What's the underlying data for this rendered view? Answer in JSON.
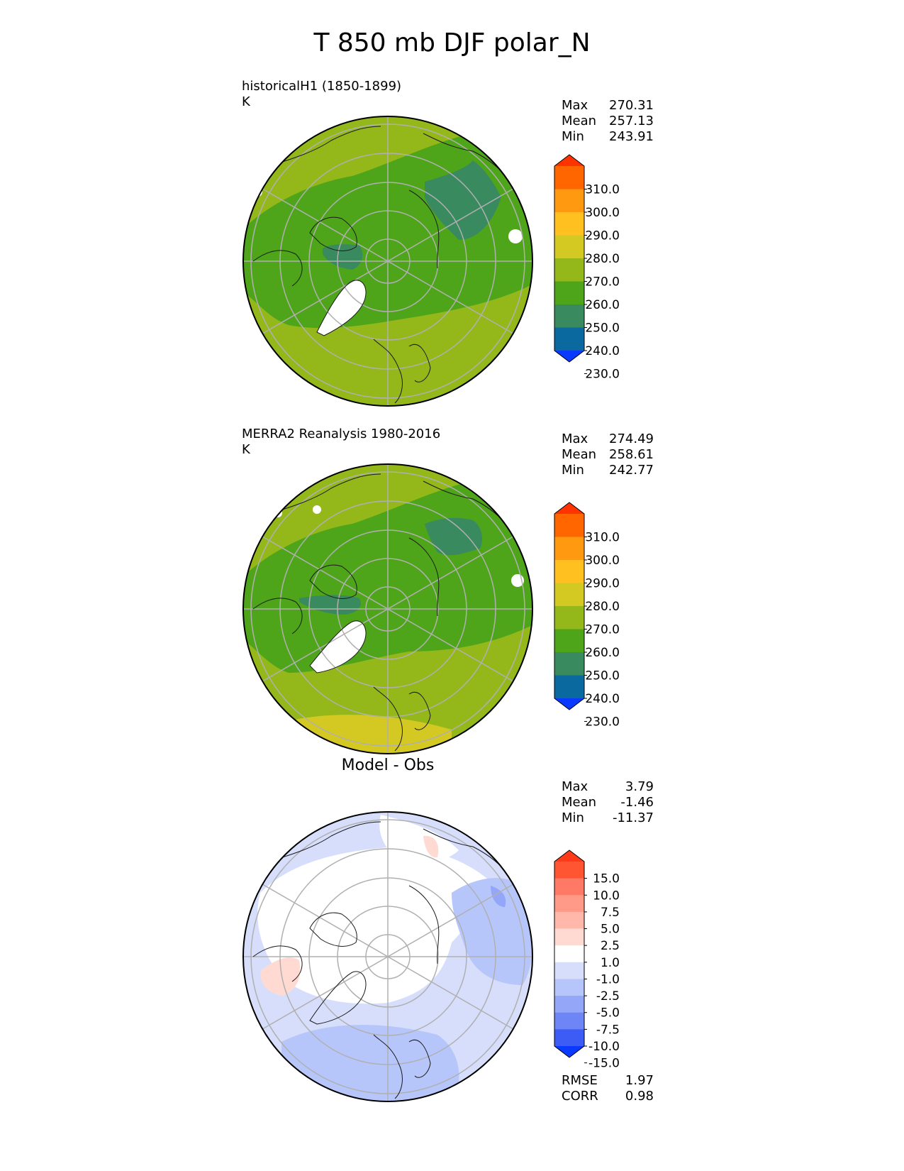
{
  "figure_title": "T 850 mb DJF polar_N",
  "panels": [
    {
      "title": "historicalH1 (1850-1899)",
      "units": "K",
      "stats": [
        {
          "label": "Max",
          "value": "270.31"
        },
        {
          "label": "Mean",
          "value": "257.13"
        },
        {
          "label": "Min",
          "value": "243.91"
        }
      ],
      "colorbar": {
        "ticks": [
          "310.0",
          "300.0",
          "290.0",
          "280.0",
          "270.0",
          "260.0",
          "250.0",
          "240.0",
          "230.0"
        ],
        "colors": [
          "#ff3300",
          "#ff6600",
          "#ff9a10",
          "#ffc020",
          "#d4c822",
          "#94b81a",
          "#4ea51a",
          "#3a8a60",
          "#0a6aa0",
          "#0a3aff"
        ]
      }
    },
    {
      "title": "MERRA2 Reanalysis 1980-2016",
      "units": "K",
      "stats": [
        {
          "label": "Max",
          "value": "274.49"
        },
        {
          "label": "Mean",
          "value": "258.61"
        },
        {
          "label": "Min",
          "value": "242.77"
        }
      ],
      "colorbar": {
        "ticks": [
          "310.0",
          "300.0",
          "290.0",
          "280.0",
          "270.0",
          "260.0",
          "250.0",
          "240.0",
          "230.0"
        ],
        "colors": [
          "#ff3300",
          "#ff6600",
          "#ff9a10",
          "#ffc020",
          "#d4c822",
          "#94b81a",
          "#4ea51a",
          "#3a8a60",
          "#0a6aa0",
          "#0a3aff"
        ]
      }
    },
    {
      "title": "Model - Obs",
      "units": "",
      "stats": [
        {
          "label": "Max",
          "value": "3.79"
        },
        {
          "label": "Mean",
          "value": "-1.46"
        },
        {
          "label": "Min",
          "value": "-11.37"
        }
      ],
      "colorbar": {
        "ticks": [
          "15.0",
          "10.0",
          "7.5",
          "5.0",
          "2.5",
          "1.0",
          "-1.0",
          "-2.5",
          "-5.0",
          "-7.5",
          "-10.0",
          "-15.0"
        ],
        "colors": [
          "#ff3a1a",
          "#ff5533",
          "#ff7a66",
          "#ff9a88",
          "#ffb8aa",
          "#ffdad2",
          "#ffffff",
          "#d6defc",
          "#b7c6fa",
          "#93a6f8",
          "#6e85f6",
          "#3d5cf6",
          "#0a3aff"
        ]
      },
      "metrics": [
        {
          "label": "RMSE",
          "value": "1.97"
        },
        {
          "label": "CORR",
          "value": "0.98"
        }
      ]
    }
  ],
  "chart_data": [
    {
      "type": "heatmap",
      "projection": "north polar stereographic",
      "title": "historicalH1 (1850-1899)",
      "units": "K",
      "max": 270.31,
      "mean": 257.13,
      "min": 243.91,
      "levels": [
        230.0,
        240.0,
        250.0,
        260.0,
        270.0,
        280.0,
        290.0,
        300.0,
        310.0
      ],
      "extend": "both"
    },
    {
      "type": "heatmap",
      "projection": "north polar stereographic",
      "title": "MERRA2 Reanalysis 1980-2016",
      "units": "K",
      "max": 274.49,
      "mean": 258.61,
      "min": 242.77,
      "levels": [
        230.0,
        240.0,
        250.0,
        260.0,
        270.0,
        280.0,
        290.0,
        300.0,
        310.0
      ],
      "extend": "both"
    },
    {
      "type": "heatmap",
      "projection": "north polar stereographic",
      "title": "Model - Obs",
      "max": 3.79,
      "mean": -1.46,
      "min": -11.37,
      "rmse": 1.97,
      "corr": 0.98,
      "levels": [
        -15.0,
        -10.0,
        -7.5,
        -5.0,
        -2.5,
        -1.0,
        1.0,
        2.5,
        5.0,
        7.5,
        10.0,
        15.0
      ],
      "extend": "both"
    }
  ]
}
